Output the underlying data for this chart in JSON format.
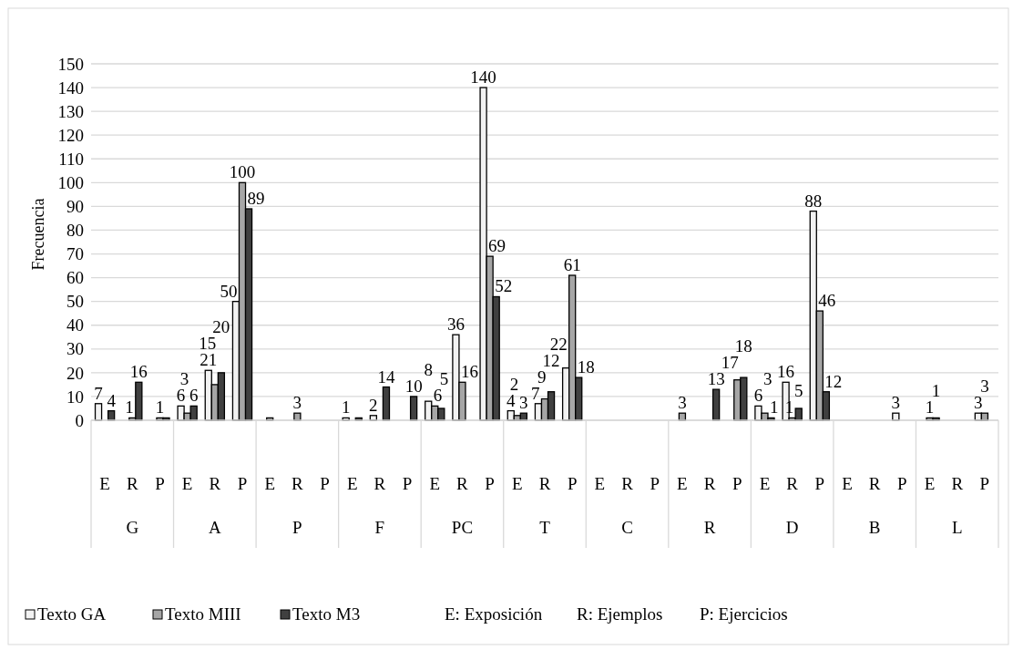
{
  "chart_data": {
    "type": "bar",
    "ylabel": "Frecuencia",
    "categories": [
      "E",
      "R",
      "P",
      "E",
      "R",
      "P",
      "E",
      "R",
      "P",
      "E",
      "R",
      "P",
      "E",
      "R",
      "P",
      "E",
      "R",
      "P",
      "E",
      "R",
      "P",
      "E",
      "R",
      "P",
      "E",
      "R",
      "P",
      "E",
      "R",
      "P",
      "E",
      "R",
      "P"
    ],
    "series": [
      {
        "name": "Texto GA",
        "color": "#f2f2f2",
        "values": [
          7,
          null,
          null,
          6,
          21,
          50,
          null,
          null,
          null,
          1,
          2,
          null,
          8,
          36,
          140,
          4,
          7,
          22,
          null,
          null,
          null,
          null,
          null,
          null,
          6,
          16,
          88,
          null,
          null,
          3,
          null,
          null,
          3
        ],
        "value_labels": [
          "7",
          null,
          null,
          "6",
          "21",
          "50",
          null,
          null,
          null,
          "1",
          "2",
          null,
          "8",
          "36",
          "140",
          "4",
          "7",
          "22",
          null,
          null,
          null,
          null,
          null,
          null,
          "6",
          "16",
          "88",
          null,
          null,
          "3",
          null,
          null,
          "3"
        ]
      },
      {
        "name": "Texto MIII",
        "color": "#a6a6a6",
        "values": [
          null,
          1,
          1,
          3,
          15,
          100,
          1,
          3,
          null,
          null,
          null,
          null,
          6,
          16,
          69,
          2,
          9,
          61,
          null,
          null,
          null,
          3,
          null,
          17,
          3,
          1,
          46,
          null,
          null,
          null,
          1,
          null,
          3
        ],
        "value_labels": [
          null,
          "1",
          "1",
          "3",
          "15",
          "100",
          null,
          "3",
          null,
          null,
          null,
          null,
          "6",
          "16",
          "69",
          "2",
          "9",
          "61",
          null,
          null,
          null,
          "3",
          null,
          "17",
          "3",
          "1",
          "46",
          null,
          null,
          null,
          "1",
          null,
          "3"
        ]
      },
      {
        "name": "Texto M3",
        "color": "#404040",
        "values": [
          4,
          16,
          1,
          6,
          20,
          89,
          null,
          null,
          null,
          1,
          14,
          10,
          5,
          null,
          52,
          3,
          12,
          18,
          null,
          null,
          null,
          null,
          13,
          18,
          1,
          5,
          12,
          null,
          null,
          null,
          1,
          null,
          null
        ],
        "value_labels": [
          "4",
          "16",
          null,
          "6",
          "20",
          "89",
          null,
          null,
          null,
          null,
          "14",
          "10",
          "5",
          null,
          "52",
          "3",
          "12",
          "18",
          null,
          null,
          null,
          null,
          "13",
          "18",
          "1",
          "5",
          "12",
          null,
          null,
          null,
          "1",
          null,
          null
        ]
      }
    ],
    "ylim": [
      0,
      150
    ],
    "yticks": [
      0,
      10,
      20,
      30,
      40,
      50,
      60,
      70,
      80,
      90,
      100,
      110,
      120,
      130,
      140,
      150
    ],
    "grid": "y",
    "legend": "bottom",
    "annotations": [
      "G",
      "A",
      "P",
      "F",
      "PC",
      "T",
      "C",
      "R",
      "D",
      "B",
      "L",
      "E: Exposición",
      "R: Ejemplos",
      "P: Ejercicios"
    ]
  }
}
